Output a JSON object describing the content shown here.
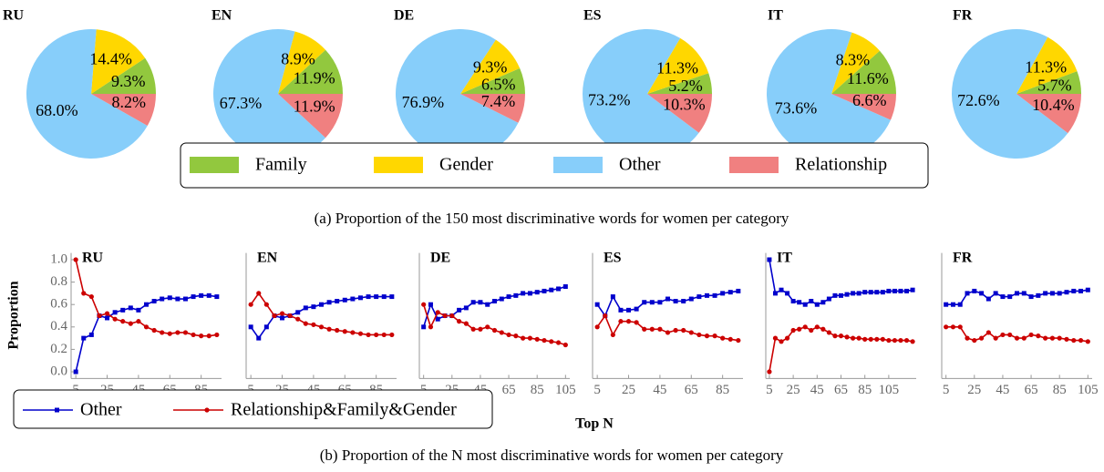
{
  "chart_data": [
    {
      "type": "pie",
      "title": "RU",
      "categories": [
        "Family",
        "Gender",
        "Other",
        "Relationship"
      ],
      "colors": [
        "#92c83e",
        "#ffd700",
        "#87cefa",
        "#f08080"
      ],
      "values": [
        9.3,
        14.4,
        68.0,
        8.2
      ],
      "value_labels": [
        "9.3%",
        "14.4%",
        "68.0%",
        "8.2%"
      ]
    },
    {
      "type": "pie",
      "title": "EN",
      "categories": [
        "Family",
        "Gender",
        "Other",
        "Relationship"
      ],
      "colors": [
        "#92c83e",
        "#ffd700",
        "#87cefa",
        "#f08080"
      ],
      "values": [
        11.9,
        8.9,
        67.3,
        11.9
      ],
      "value_labels": [
        "11.9%",
        "8.9%",
        "67.3%",
        "11.9%"
      ]
    },
    {
      "type": "pie",
      "title": "DE",
      "categories": [
        "Family",
        "Gender",
        "Other",
        "Relationship"
      ],
      "colors": [
        "#92c83e",
        "#ffd700",
        "#87cefa",
        "#f08080"
      ],
      "values": [
        6.5,
        9.3,
        76.9,
        7.4
      ],
      "value_labels": [
        "6.5%",
        "9.3%",
        "76.9%",
        "7.4%"
      ]
    },
    {
      "type": "pie",
      "title": "ES",
      "categories": [
        "Family",
        "Gender",
        "Other",
        "Relationship"
      ],
      "colors": [
        "#92c83e",
        "#ffd700",
        "#87cefa",
        "#f08080"
      ],
      "values": [
        5.2,
        11.3,
        73.2,
        10.3
      ],
      "value_labels": [
        "5.2%",
        "11.3%",
        "73.2%",
        "10.3%"
      ]
    },
    {
      "type": "pie",
      "title": "IT",
      "categories": [
        "Family",
        "Gender",
        "Other",
        "Relationship"
      ],
      "colors": [
        "#92c83e",
        "#ffd700",
        "#87cefa",
        "#f08080"
      ],
      "values": [
        11.6,
        8.3,
        73.6,
        6.6
      ],
      "value_labels": [
        "11.6%",
        "8.3%",
        "73.6%",
        "6.6%"
      ]
    },
    {
      "type": "pie",
      "title": "FR",
      "categories": [
        "Family",
        "Gender",
        "Other",
        "Relationship"
      ],
      "colors": [
        "#92c83e",
        "#ffd700",
        "#87cefa",
        "#f08080"
      ],
      "values": [
        5.7,
        11.3,
        72.6,
        10.4
      ],
      "value_labels": [
        "5.7%",
        "11.3%",
        "72.6%",
        "10.4%"
      ]
    },
    {
      "type": "line",
      "title": "RU",
      "y_label": "Proportion",
      "x": [
        5,
        10,
        15,
        20,
        25,
        30,
        35,
        40,
        45,
        50,
        55,
        60,
        65,
        70,
        75,
        80,
        85,
        90,
        95
      ],
      "xlim": [
        2,
        98
      ],
      "ylim": [
        -0.06,
        1.06
      ],
      "xticks": [
        5,
        25,
        45,
        65,
        85
      ],
      "yticks": [
        {
          "value": 0,
          "label": "0.0"
        },
        0.2,
        0.4,
        0.6,
        0.8,
        {
          "value": 1,
          "label": "1.0"
        }
      ],
      "series": [
        {
          "name": "Other",
          "color": "#0000cc",
          "values": [
            0,
            0.3,
            0.33,
            0.5,
            0.48,
            0.53,
            0.55,
            0.57,
            0.55,
            0.6,
            0.63,
            0.65,
            0.66,
            0.65,
            0.65,
            0.67,
            0.68,
            0.68,
            0.67
          ]
        },
        {
          "name": "Relationship&Family&Gender",
          "color": "#cc0000",
          "values": [
            1,
            0.7,
            0.67,
            0.5,
            0.52,
            0.47,
            0.45,
            0.43,
            0.45,
            0.4,
            0.37,
            0.35,
            0.34,
            0.35,
            0.35,
            0.33,
            0.32,
            0.32,
            0.33
          ]
        }
      ]
    },
    {
      "type": "line",
      "title": "EN",
      "x": [
        5,
        10,
        15,
        20,
        25,
        30,
        35,
        40,
        45,
        50,
        55,
        60,
        65,
        70,
        75,
        80,
        85,
        90,
        95
      ],
      "xlim": [
        2,
        98
      ],
      "ylim": [
        -0.06,
        1.06
      ],
      "xticks": [
        5,
        25,
        45,
        65,
        85
      ],
      "series": [
        {
          "color": "#0000cc",
          "values": [
            0.4,
            0.3,
            0.4,
            0.5,
            0.48,
            0.5,
            0.53,
            0.57,
            0.58,
            0.6,
            0.62,
            0.63,
            0.64,
            0.65,
            0.66,
            0.67,
            0.67,
            0.67,
            0.67
          ]
        },
        {
          "color": "#cc0000",
          "values": [
            0.6,
            0.7,
            0.6,
            0.5,
            0.52,
            0.5,
            0.47,
            0.43,
            0.42,
            0.4,
            0.38,
            0.37,
            0.36,
            0.35,
            0.34,
            0.33,
            0.33,
            0.33,
            0.33
          ]
        }
      ]
    },
    {
      "type": "line",
      "title": "DE",
      "x": [
        5,
        10,
        15,
        20,
        25,
        30,
        35,
        40,
        45,
        50,
        55,
        60,
        65,
        70,
        75,
        80,
        85,
        90,
        95,
        100,
        105
      ],
      "xlim": [
        2,
        108
      ],
      "ylim": [
        -0.06,
        1.06
      ],
      "xticks": [
        5,
        25,
        45,
        65,
        85,
        105
      ],
      "series": [
        {
          "color": "#0000cc",
          "values": [
            0.4,
            0.6,
            0.47,
            0.5,
            0.5,
            0.55,
            0.57,
            0.62,
            0.62,
            0.6,
            0.63,
            0.65,
            0.67,
            0.68,
            0.7,
            0.7,
            0.71,
            0.72,
            0.73,
            0.74,
            0.76
          ]
        },
        {
          "color": "#cc0000",
          "values": [
            0.6,
            0.4,
            0.53,
            0.5,
            0.5,
            0.45,
            0.43,
            0.38,
            0.38,
            0.4,
            0.37,
            0.35,
            0.33,
            0.32,
            0.3,
            0.3,
            0.29,
            0.28,
            0.27,
            0.26,
            0.24
          ]
        }
      ]
    },
    {
      "type": "line",
      "title": "ES",
      "x_label": "Top N",
      "x": [
        5,
        10,
        15,
        20,
        25,
        30,
        35,
        40,
        45,
        50,
        55,
        60,
        65,
        70,
        75,
        80,
        85,
        90,
        95
      ],
      "xlim": [
        2,
        98
      ],
      "ylim": [
        -0.06,
        1.06
      ],
      "xticks": [
        5,
        25,
        45,
        65,
        85
      ],
      "series": [
        {
          "color": "#0000cc",
          "values": [
            0.6,
            0.5,
            0.67,
            0.55,
            0.55,
            0.56,
            0.62,
            0.62,
            0.62,
            0.65,
            0.63,
            0.63,
            0.65,
            0.67,
            0.68,
            0.68,
            0.7,
            0.71,
            0.72
          ]
        },
        {
          "color": "#cc0000",
          "values": [
            0.4,
            0.5,
            0.33,
            0.45,
            0.45,
            0.44,
            0.38,
            0.38,
            0.38,
            0.35,
            0.37,
            0.37,
            0.35,
            0.33,
            0.32,
            0.32,
            0.3,
            0.29,
            0.28
          ]
        }
      ]
    },
    {
      "type": "line",
      "title": "IT",
      "x": [
        5,
        10,
        15,
        20,
        25,
        30,
        35,
        40,
        45,
        50,
        55,
        60,
        65,
        70,
        75,
        80,
        85,
        90,
        95,
        100,
        105,
        110,
        115,
        120,
        125
      ],
      "xlim": [
        2,
        128
      ],
      "ylim": [
        -0.06,
        1.06
      ],
      "xticks": [
        5,
        25,
        45,
        65,
        85,
        105
      ],
      "series": [
        {
          "color": "#0000cc",
          "values": [
            1,
            0.7,
            0.73,
            0.7,
            0.63,
            0.62,
            0.6,
            0.63,
            0.6,
            0.62,
            0.65,
            0.68,
            0.68,
            0.69,
            0.7,
            0.7,
            0.71,
            0.71,
            0.71,
            0.71,
            0.72,
            0.72,
            0.72,
            0.72,
            0.73
          ]
        },
        {
          "color": "#cc0000",
          "values": [
            0,
            0.3,
            0.27,
            0.3,
            0.37,
            0.38,
            0.4,
            0.37,
            0.4,
            0.38,
            0.35,
            0.32,
            0.32,
            0.31,
            0.3,
            0.3,
            0.29,
            0.29,
            0.29,
            0.29,
            0.28,
            0.28,
            0.28,
            0.28,
            0.27
          ]
        }
      ]
    },
    {
      "type": "line",
      "title": "FR",
      "x": [
        5,
        10,
        15,
        20,
        25,
        30,
        35,
        40,
        45,
        50,
        55,
        60,
        65,
        70,
        75,
        80,
        85,
        90,
        95,
        100,
        105
      ],
      "xlim": [
        2,
        108
      ],
      "ylim": [
        -0.06,
        1.06
      ],
      "xticks": [
        5,
        25,
        45,
        65,
        85,
        105
      ],
      "series": [
        {
          "color": "#0000cc",
          "values": [
            0.6,
            0.6,
            0.6,
            0.7,
            0.72,
            0.7,
            0.65,
            0.7,
            0.67,
            0.67,
            0.7,
            0.7,
            0.67,
            0.68,
            0.7,
            0.7,
            0.7,
            0.71,
            0.72,
            0.72,
            0.73
          ]
        },
        {
          "color": "#cc0000",
          "values": [
            0.4,
            0.4,
            0.4,
            0.3,
            0.28,
            0.3,
            0.35,
            0.3,
            0.33,
            0.33,
            0.3,
            0.3,
            0.33,
            0.32,
            0.3,
            0.3,
            0.3,
            0.29,
            0.28,
            0.28,
            0.27
          ]
        }
      ]
    }
  ],
  "captions": [
    "(a) Proportion of the 150 most discriminative words for women per category",
    "(b) Proportion of the N most discriminative words for women per category"
  ]
}
